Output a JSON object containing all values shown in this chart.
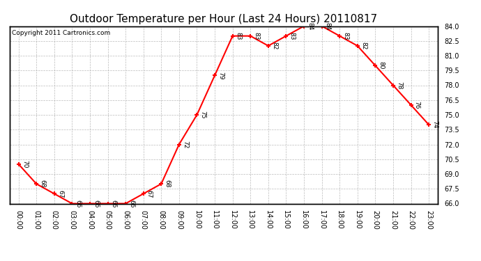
{
  "title": "Outdoor Temperature per Hour (Last 24 Hours) 20110817",
  "copyright": "Copyright 2011 Cartronics.com",
  "hours": [
    "00:00",
    "01:00",
    "02:00",
    "03:00",
    "04:00",
    "05:00",
    "06:00",
    "07:00",
    "08:00",
    "09:00",
    "10:00",
    "11:00",
    "12:00",
    "13:00",
    "14:00",
    "15:00",
    "16:00",
    "17:00",
    "18:00",
    "19:00",
    "20:00",
    "21:00",
    "22:00",
    "23:00"
  ],
  "temperatures": [
    70,
    68,
    67,
    66,
    66,
    66,
    66,
    67,
    68,
    72,
    75,
    79,
    83,
    83,
    82,
    83,
    84,
    84,
    83,
    82,
    80,
    78,
    76,
    74
  ],
  "ylim_min": 66.0,
  "ylim_max": 84.0,
  "yticks": [
    66.0,
    67.5,
    69.0,
    70.5,
    72.0,
    73.5,
    75.0,
    76.5,
    78.0,
    79.5,
    81.0,
    82.5,
    84.0
  ],
  "line_color": "#FF0000",
  "marker": "+",
  "marker_color": "#FF0000",
  "bg_color": "#FFFFFF",
  "plot_bg_color": "#FFFFFF",
  "grid_color": "#AAAAAA",
  "title_fontsize": 11,
  "copyright_fontsize": 6.5,
  "label_fontsize": 6.5,
  "tick_fontsize": 7
}
